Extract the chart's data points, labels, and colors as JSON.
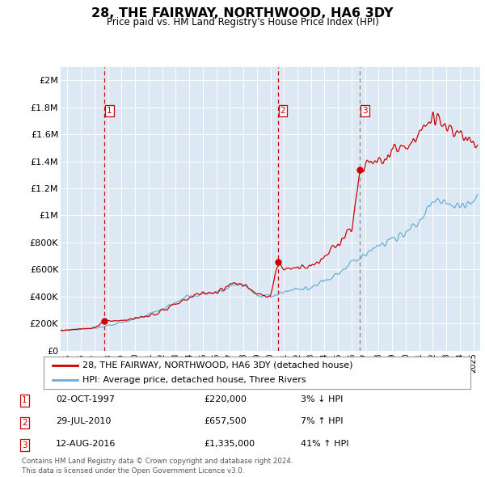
{
  "title": "28, THE FAIRWAY, NORTHWOOD, HA6 3DY",
  "subtitle": "Price paid vs. HM Land Registry's House Price Index (HPI)",
  "ylabel_ticks": [
    "£0",
    "£200K",
    "£400K",
    "£600K",
    "£800K",
    "£1M",
    "£1.2M",
    "£1.4M",
    "£1.6M",
    "£1.8M",
    "£2M"
  ],
  "ytick_values": [
    0,
    200000,
    400000,
    600000,
    800000,
    1000000,
    1200000,
    1400000,
    1600000,
    1800000,
    2000000
  ],
  "ylim": [
    0,
    2100000
  ],
  "xlim_start": 1994.5,
  "xlim_end": 2025.5,
  "background_color": "#dce9f5",
  "grid_color": "#ffffff",
  "sale_color": "#cc0000",
  "hpi_color": "#6baed6",
  "vline_colors": [
    "#cc0000",
    "#cc0000",
    "#aaaaaa"
  ],
  "legend_sale": "28, THE FAIRWAY, NORTHWOOD, HA6 3DY (detached house)",
  "legend_hpi": "HPI: Average price, detached house, Three Rivers",
  "transactions": [
    {
      "num": 1,
      "date": "02-OCT-1997",
      "price": 220000,
      "pct": "3%",
      "dir": "↓",
      "year": 1997.75
    },
    {
      "num": 2,
      "date": "29-JUL-2010",
      "price": 657500,
      "pct": "7%",
      "dir": "↑",
      "year": 2010.58
    },
    {
      "num": 3,
      "date": "12-AUG-2016",
      "price": 1335000,
      "pct": "41%",
      "dir": "↑",
      "year": 2016.62
    }
  ],
  "footer": "Contains HM Land Registry data © Crown copyright and database right 2024.\nThis data is licensed under the Open Government Licence v3.0."
}
